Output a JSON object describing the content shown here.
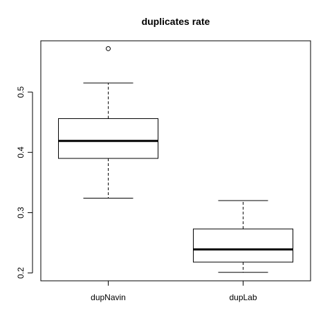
{
  "chart_data": {
    "type": "boxplot",
    "title": "duplicates rate",
    "xlabel": "",
    "ylabel": "",
    "ylim": [
      0.187,
      0.585
    ],
    "yticks": [
      0.2,
      0.3,
      0.4,
      0.5
    ],
    "ytick_labels": [
      "0.2",
      "0.3",
      "0.4",
      "0.5"
    ],
    "categories": [
      "dupNavin",
      "dupLab"
    ],
    "boxes": [
      {
        "name": "dupNavin",
        "whisker_low": 0.324,
        "q1": 0.39,
        "median": 0.419,
        "q3": 0.456,
        "whisker_high": 0.515,
        "outliers": [
          0.572
        ]
      },
      {
        "name": "dupLab",
        "whisker_low": 0.201,
        "q1": 0.218,
        "median": 0.239,
        "q3": 0.273,
        "whisker_high": 0.32,
        "outliers": []
      }
    ],
    "colors": {
      "line": "#000000",
      "box_fill": "#ffffff",
      "background": "#ffffff"
    }
  }
}
